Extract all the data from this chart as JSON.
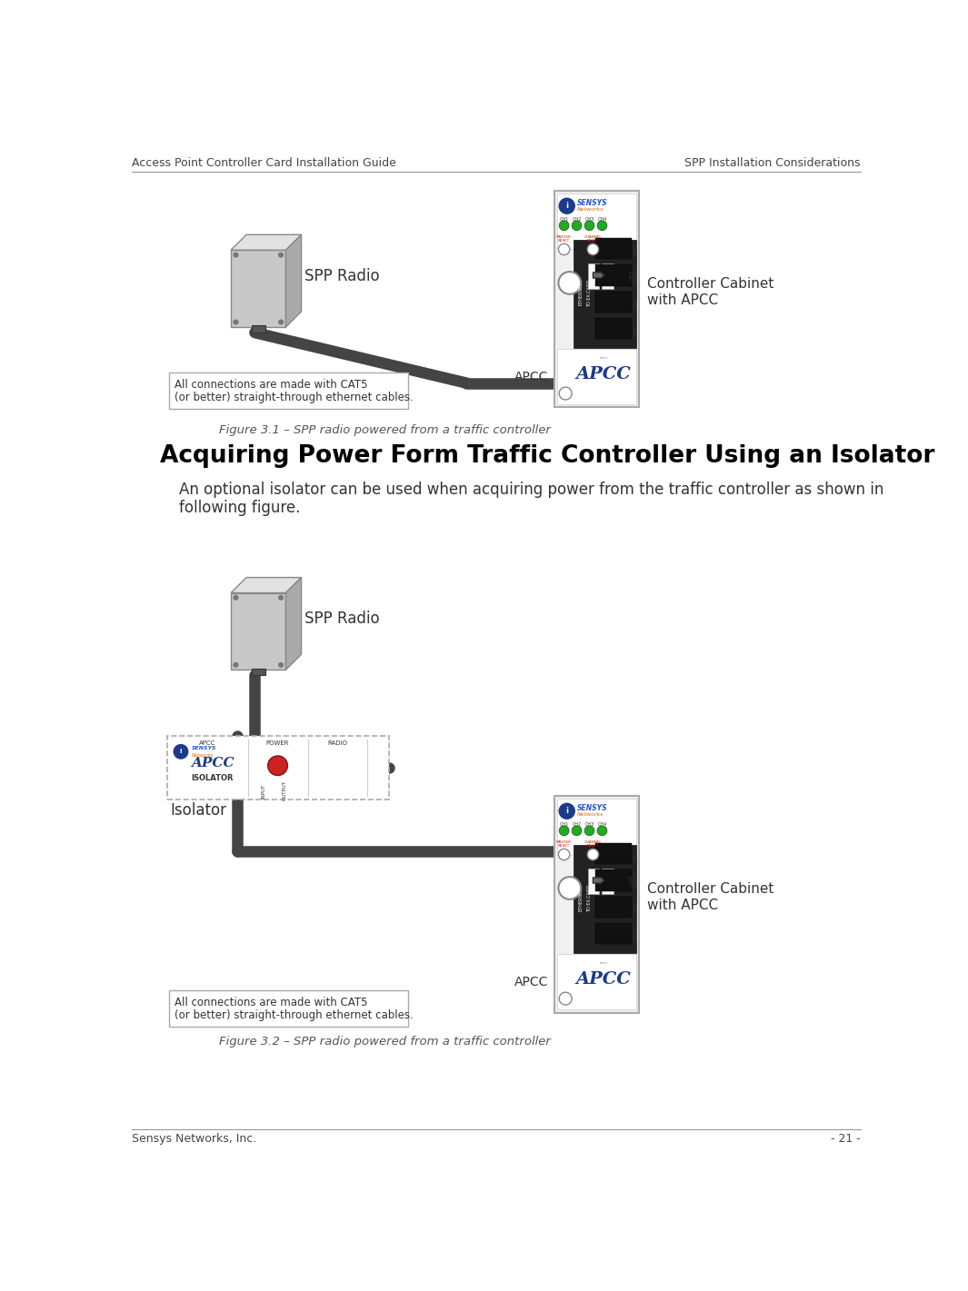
{
  "header_left": "Access Point Controller Card Installation Guide",
  "header_right": "SPP Installation Considerations",
  "footer_left": "Sensys Networks, Inc.",
  "footer_right": "- 21 -",
  "fig1_caption": "Figure 3.1 – SPP radio powered from a traffic controller",
  "fig2_caption": "Figure 3.2 – SPP radio powered from a traffic controller",
  "section_title": "Acquiring Power Form Traffic Controller Using an Isolator",
  "body_line1": "An optional isolator can be used when acquiring power from the traffic controller as shown in",
  "body_line2": "following figure.",
  "note_text1a": "All connections are made with CAT5",
  "note_text1b": "(or better) straight-through ethernet cables.",
  "note_text2a": "All connections are made with CAT5",
  "note_text2b": "(or better) straight-through ethernet cables.",
  "controller_label": "Controller Cabinet\nwith APCC",
  "apcc_label": "APCC",
  "isolator_label": "Isolator",
  "spp_radio_label": "SPP Radio",
  "bg_color": "#ffffff",
  "header_line_color": "#999999",
  "cable_color": "#444444",
  "green_led": "#22aa22",
  "red_text": "#cc2200",
  "sensys_blue": "#2255cc",
  "sensys_orange": "#dd6600",
  "apcc_blue": "#1a3a8a",
  "dark_port": "#111111",
  "med_gray": "#888888",
  "light_gray": "#cccccc",
  "box_front": "#c8c8c8",
  "box_top": "#e2e2e2",
  "box_right": "#aaaaaa"
}
